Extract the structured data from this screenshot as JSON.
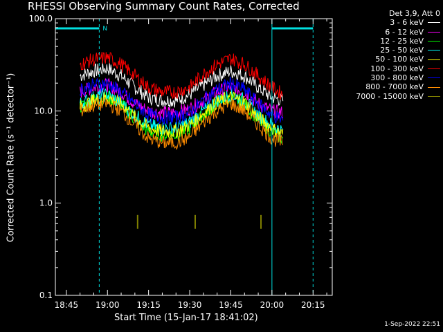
{
  "chart_data": {
    "type": "line",
    "title": "RHESSI Observing Summary Count Rates, Corrected",
    "xlabel": "Start Time (15-Jan-17 18:41:02)",
    "ylabel": "Corrected Count Rate (s⁻¹ detector⁻¹)",
    "y_scale": "log",
    "ylim": [
      0.1,
      100.0
    ],
    "xlim": [
      "18:41",
      "20:22"
    ],
    "x_ticks": [
      "18:45",
      "19:00",
      "19:15",
      "19:30",
      "19:45",
      "20:00",
      "20:15"
    ],
    "y_ticks": [
      "0.1",
      "1.0",
      "10.0",
      "100.0"
    ],
    "legend_title": "Det 3,9, Att 0",
    "legend_position": "top-right",
    "series": [
      {
        "name": "3 - 6 keV",
        "color": "#ffffff",
        "x": [
          "18:50",
          "18:55",
          "19:00",
          "19:05",
          "19:10",
          "19:15",
          "19:20",
          "19:25",
          "19:30",
          "19:35",
          "19:40",
          "19:45",
          "19:50",
          "19:55",
          "20:00",
          "20:04"
        ],
        "y": [
          24,
          27,
          29,
          24,
          18,
          14,
          13,
          13,
          15,
          19,
          24,
          27,
          24,
          18,
          14,
          13
        ]
      },
      {
        "name": "6 - 12 keV",
        "color": "#ff00ff",
        "x": [
          "18:50",
          "18:55",
          "19:00",
          "19:05",
          "19:10",
          "19:15",
          "19:20",
          "19:25",
          "19:30",
          "19:35",
          "19:40",
          "19:45",
          "19:50",
          "19:55",
          "20:00",
          "20:04"
        ],
        "y": [
          16,
          18,
          19,
          16,
          12,
          10,
          9.5,
          9.5,
          10.5,
          13,
          16,
          18,
          16,
          12,
          10,
          9.5
        ]
      },
      {
        "name": "12 - 25 keV",
        "color": "#00ff00",
        "x": [
          "18:50",
          "18:55",
          "19:00",
          "19:05",
          "19:10",
          "19:15",
          "19:20",
          "19:25",
          "19:30",
          "19:35",
          "19:40",
          "19:45",
          "19:50",
          "19:55",
          "20:00",
          "20:04"
        ],
        "y": [
          11,
          13,
          14,
          12,
          8,
          6,
          5.5,
          5.5,
          6.5,
          9,
          12,
          14,
          12,
          8,
          6,
          5
        ]
      },
      {
        "name": "25 - 50 keV",
        "color": "#00ffff",
        "x": [
          "18:50",
          "18:55",
          "19:00",
          "19:05",
          "19:10",
          "19:15",
          "19:20",
          "19:25",
          "19:30",
          "19:35",
          "19:40",
          "19:45",
          "19:50",
          "19:55",
          "20:00",
          "20:04"
        ],
        "y": [
          12,
          14,
          15,
          12,
          9,
          7,
          6.5,
          6.5,
          7.5,
          10,
          13,
          15,
          13,
          9,
          7,
          6
        ]
      },
      {
        "name": "50 - 100 keV",
        "color": "#ffff00",
        "x": [
          "18:50",
          "18:55",
          "19:00",
          "19:05",
          "19:10",
          "19:15",
          "19:20",
          "19:25",
          "19:30",
          "19:35",
          "19:40",
          "19:45",
          "19:50",
          "19:55",
          "20:00",
          "20:04"
        ],
        "y": [
          11,
          13,
          14,
          12,
          8.5,
          6.5,
          6,
          6,
          7,
          9.5,
          12.5,
          14,
          12.5,
          8.5,
          6.5,
          5.5
        ]
      },
      {
        "name": "100 - 300 keV",
        "color": "#ff0000",
        "x": [
          "18:50",
          "18:55",
          "19:00",
          "19:05",
          "19:10",
          "19:15",
          "19:20",
          "19:25",
          "19:30",
          "19:35",
          "19:40",
          "19:45",
          "19:50",
          "19:55",
          "20:00",
          "20:04"
        ],
        "y": [
          32,
          36,
          38,
          32,
          24,
          18,
          16,
          16,
          18,
          25,
          32,
          37,
          32,
          24,
          18,
          15
        ]
      },
      {
        "name": "300 - 800 keV",
        "color": "#0000ff",
        "x": [
          "18:50",
          "18:55",
          "19:00",
          "19:05",
          "19:10",
          "19:15",
          "19:20",
          "19:25",
          "19:30",
          "19:35",
          "19:40",
          "19:45",
          "19:50",
          "19:55",
          "20:00",
          "20:04"
        ],
        "y": [
          17,
          19,
          20,
          16,
          12,
          9,
          8.5,
          8.5,
          9.5,
          13,
          17,
          20,
          17,
          12,
          9,
          8
        ]
      },
      {
        "name": "800 - 7000 keV",
        "color": "#ff8c00",
        "x": [
          "18:50",
          "18:55",
          "19:00",
          "19:05",
          "19:10",
          "19:15",
          "19:20",
          "19:25",
          "19:30",
          "19:35",
          "19:40",
          "19:45",
          "19:50",
          "19:55",
          "20:00",
          "20:04"
        ],
        "y": [
          10,
          11.5,
          12,
          10,
          7,
          5,
          4.5,
          4.5,
          5.2,
          7.5,
          10,
          12,
          10,
          7,
          5,
          4.5
        ]
      },
      {
        "name": "7000 - 15000 keV",
        "color": "#808000",
        "x": [
          "19:11",
          "19:32",
          "19:56"
        ],
        "y": [
          0.62,
          0.62,
          0.62
        ]
      }
    ],
    "annotations": {
      "night_marker_label": "N",
      "night_intervals": [
        [
          "18:41",
          "18:57"
        ],
        [
          "20:00",
          "20:15"
        ]
      ]
    }
  },
  "timestamp": "1-Sep-2022 22:51"
}
